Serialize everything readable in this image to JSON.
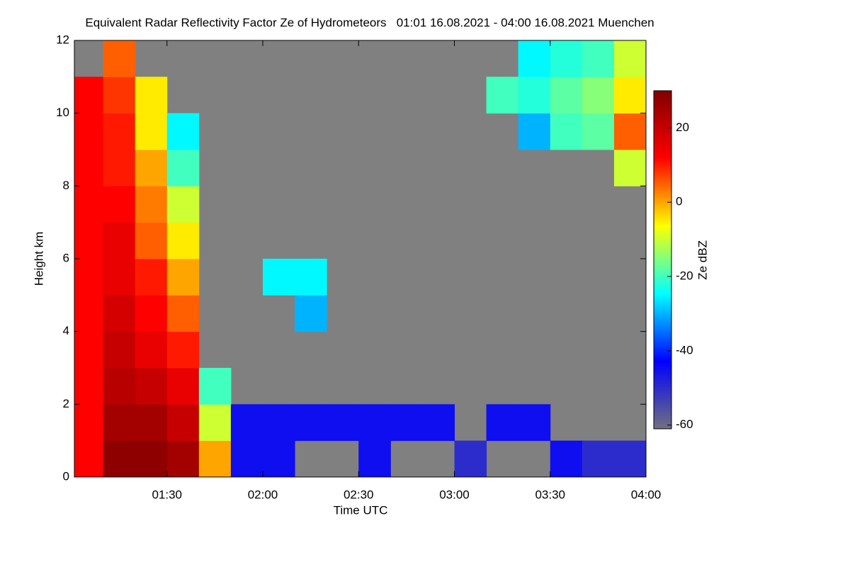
{
  "chart_data": {
    "type": "heatmap",
    "title": "Equivalent Radar Reflectivity Factor Ze of Hydrometeors   01:01 16.08.2021 - 04:00 16.08.2021 Muenchen",
    "xlabel": "Time UTC",
    "ylabel": "Height km",
    "colorbar_label": "Ze dBZ",
    "xlim": [
      "01:01",
      "04:00"
    ],
    "xticks": [
      "01:30",
      "02:00",
      "02:30",
      "03:00",
      "03:30",
      "04:00"
    ],
    "ylim": [
      0,
      12
    ],
    "yticks": [
      0,
      2,
      4,
      6,
      8,
      10,
      12
    ],
    "zlim": [
      -61,
      30
    ],
    "zticks": [
      -60,
      -40,
      -20,
      0,
      20
    ],
    "missing_color": "#808080",
    "colormap": [
      "#707080",
      "#0000ff",
      "#00ffff",
      "#ffff00",
      "#ff0000",
      "#800000"
    ],
    "x_bins": [
      "01:01",
      "01:10",
      "01:20",
      "01:30",
      "01:40",
      "01:50",
      "02:00",
      "02:10",
      "02:20",
      "02:30",
      "02:40",
      "02:50",
      "03:00",
      "03:10",
      "03:20",
      "03:30",
      "03:40",
      "03:50",
      "04:00"
    ],
    "y_bins": [
      0,
      1,
      2,
      3,
      4,
      5,
      6,
      7,
      8,
      9,
      10,
      11,
      12
    ],
    "z": [
      [
        12,
        28,
        28,
        25,
        0,
        -45,
        -45,
        null,
        null,
        -45,
        null,
        null,
        -50,
        null,
        null,
        -45,
        -50,
        -50
      ],
      [
        12,
        25,
        25,
        20,
        -10,
        -45,
        -45,
        -45,
        -45,
        -45,
        -45,
        -45,
        null,
        -45,
        -45,
        null,
        null,
        null
      ],
      [
        12,
        22,
        20,
        15,
        -20,
        null,
        null,
        null,
        null,
        null,
        null,
        null,
        null,
        null,
        null,
        null,
        null,
        null
      ],
      [
        12,
        20,
        15,
        10,
        null,
        null,
        null,
        null,
        null,
        null,
        null,
        null,
        null,
        null,
        null,
        null,
        null,
        null
      ],
      [
        12,
        18,
        12,
        5,
        null,
        null,
        null,
        -30,
        null,
        null,
        null,
        null,
        null,
        null,
        null,
        null,
        null,
        null
      ],
      [
        12,
        15,
        10,
        0,
        null,
        null,
        -25,
        -25,
        null,
        null,
        null,
        null,
        null,
        null,
        null,
        null,
        null,
        null
      ],
      [
        12,
        15,
        5,
        -5,
        null,
        null,
        null,
        null,
        null,
        null,
        null,
        null,
        null,
        null,
        null,
        null,
        null,
        null
      ],
      [
        12,
        12,
        3,
        -10,
        null,
        null,
        null,
        null,
        null,
        null,
        null,
        null,
        null,
        null,
        null,
        null,
        null,
        null
      ],
      [
        12,
        10,
        0,
        -20,
        null,
        null,
        null,
        null,
        null,
        null,
        null,
        null,
        null,
        null,
        null,
        null,
        null,
        -10
      ],
      [
        12,
        10,
        -5,
        -25,
        null,
        null,
        null,
        null,
        null,
        null,
        null,
        null,
        null,
        null,
        -30,
        -20,
        -18,
        5
      ],
      [
        12,
        8,
        -5,
        null,
        null,
        null,
        null,
        null,
        null,
        null,
        null,
        null,
        null,
        -20,
        -22,
        -18,
        -15,
        -5
      ],
      [
        null,
        5,
        null,
        null,
        null,
        null,
        null,
        null,
        null,
        null,
        null,
        null,
        null,
        null,
        -25,
        -22,
        -20,
        -10
      ]
    ]
  }
}
